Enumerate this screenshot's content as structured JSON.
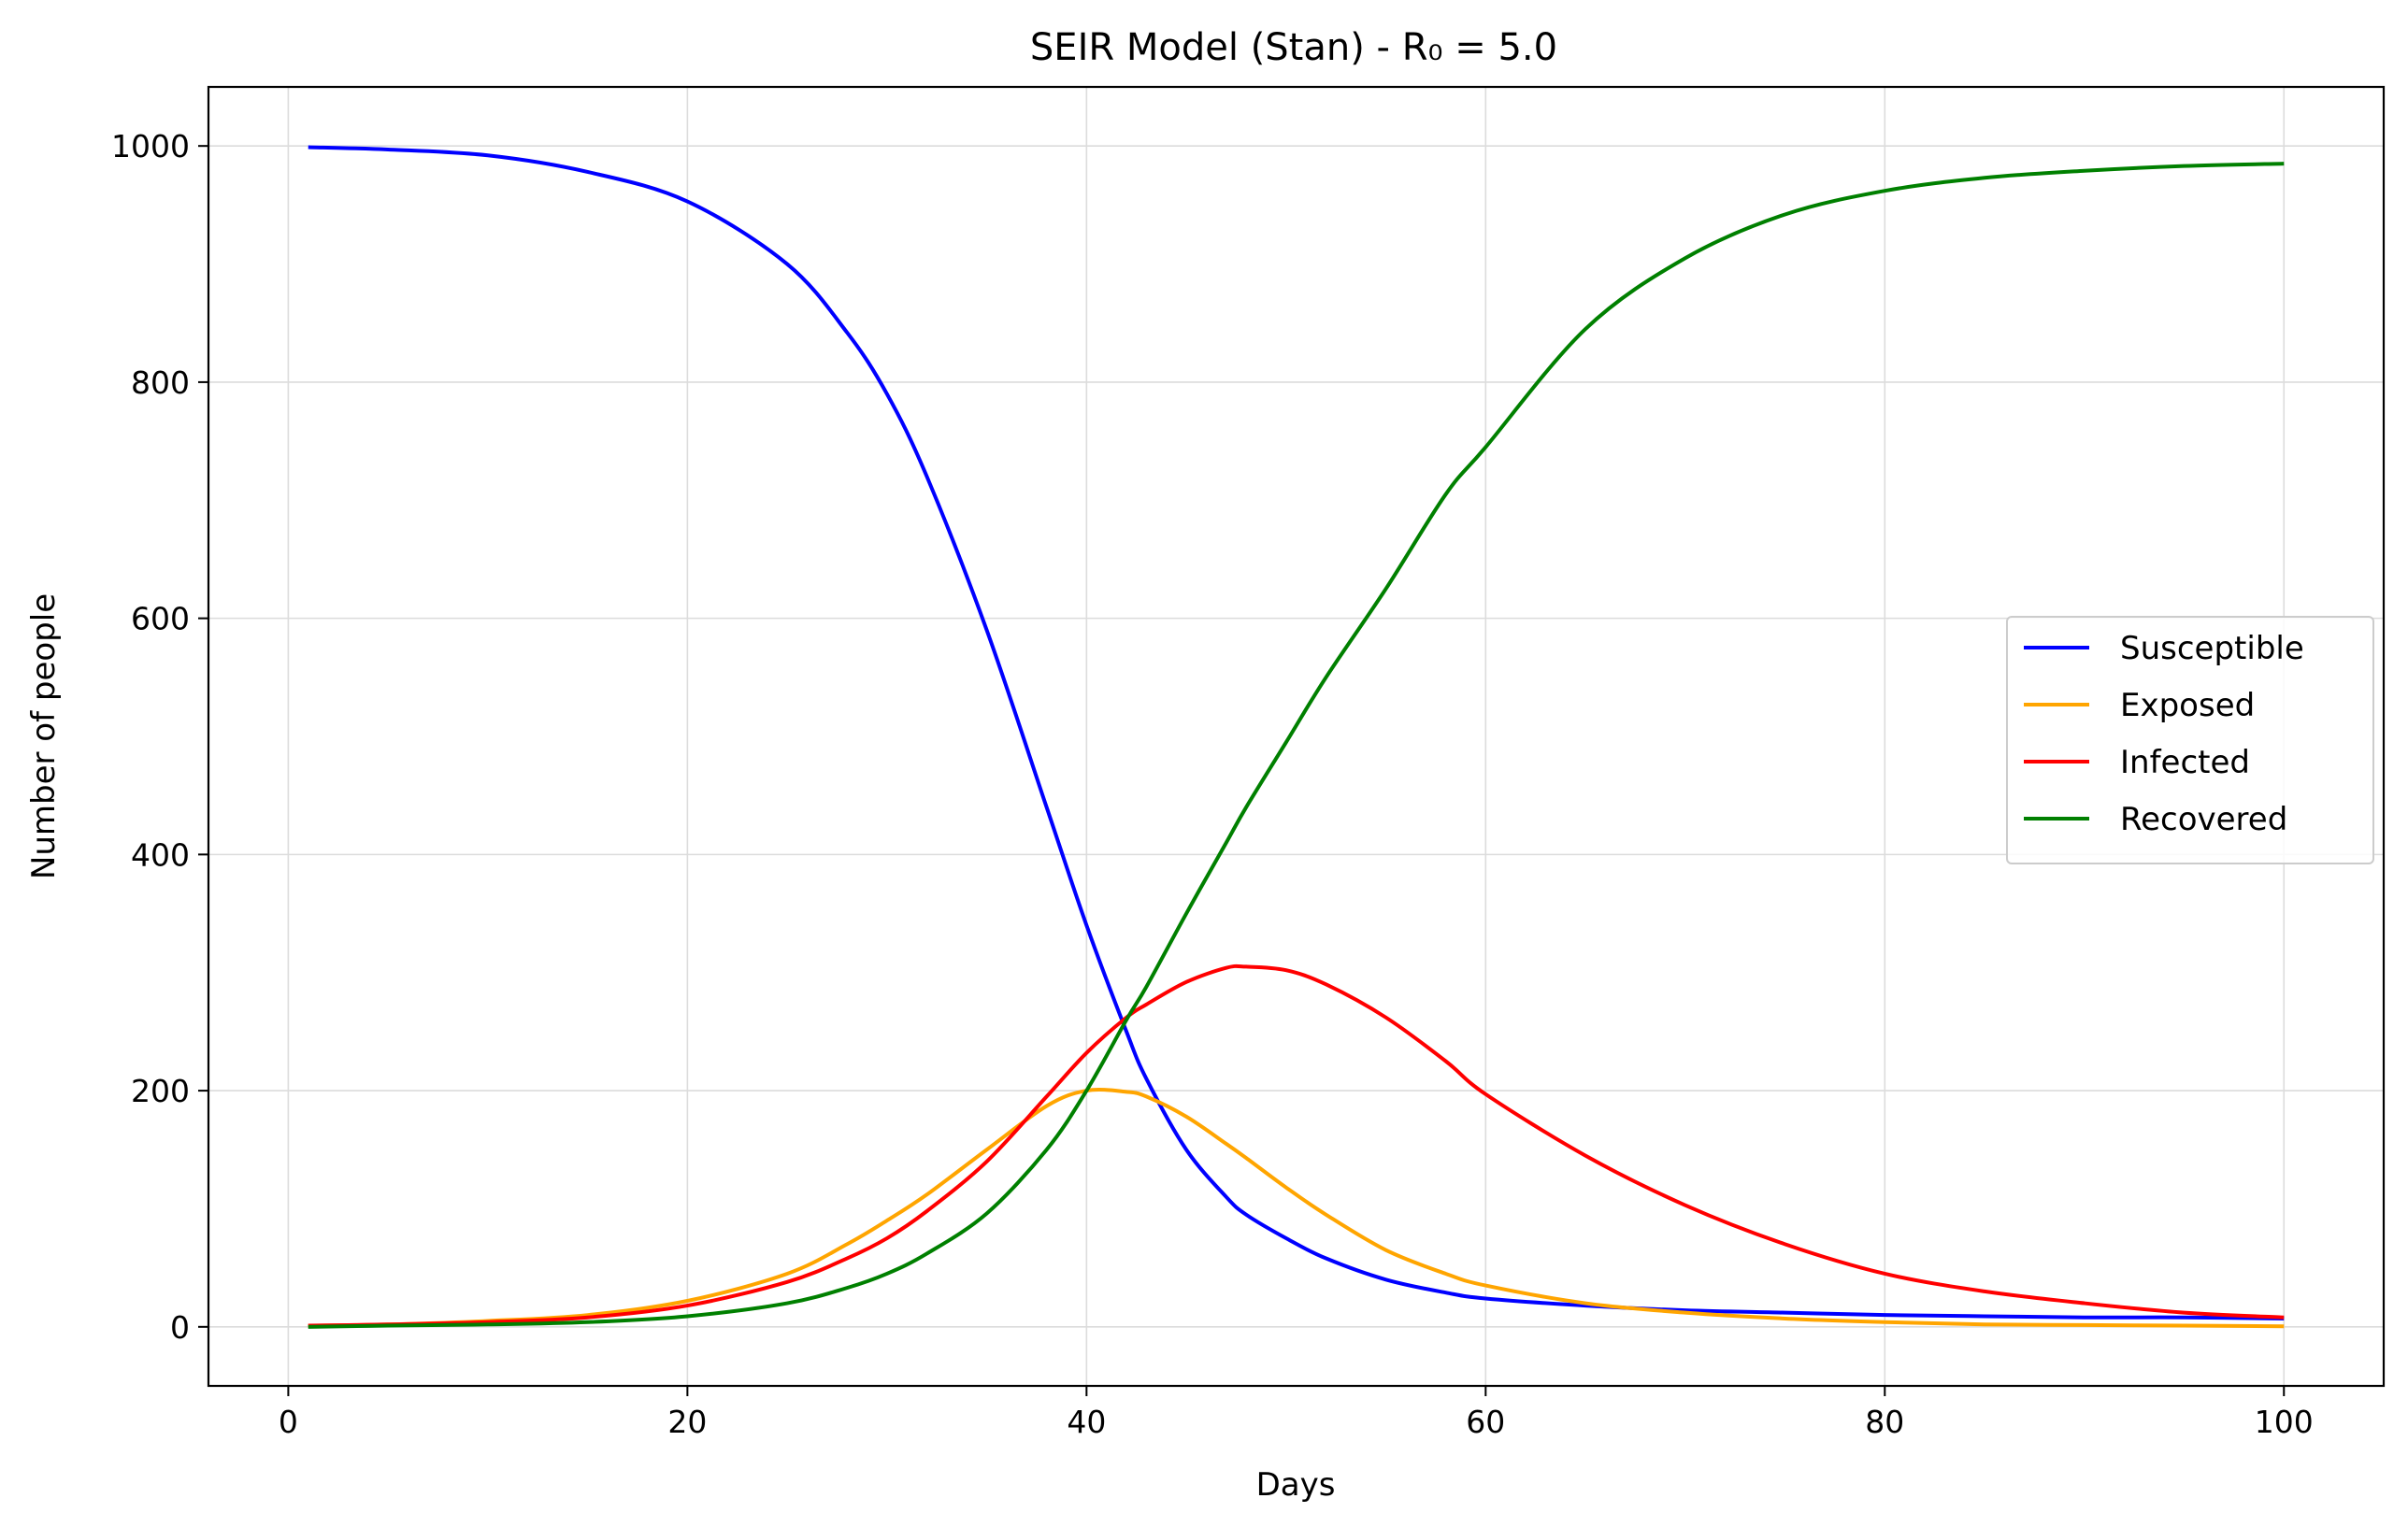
{
  "chart_data": {
    "type": "line",
    "title": "SEIR Model (Stan) - R₀ = 5.0",
    "xlabel": "Days",
    "ylabel": "Number of people",
    "xlim": [
      -4,
      105
    ],
    "ylim": [
      -50,
      1050
    ],
    "xticks": [
      0,
      20,
      40,
      60,
      80,
      100
    ],
    "yticks": [
      0,
      200,
      400,
      600,
      800,
      1000
    ],
    "grid": true,
    "legend_position": "center-right",
    "x": [
      1,
      5,
      10,
      15,
      20,
      25,
      28,
      30,
      32,
      35,
      38,
      40,
      42,
      43,
      45,
      47,
      48,
      50,
      52,
      55,
      58,
      60,
      65,
      70,
      75,
      80,
      85,
      90,
      95,
      100
    ],
    "series": [
      {
        "name": "Susceptible",
        "color": "#0000ff",
        "values": [
          999,
          997,
          992,
          978,
          953,
          900,
          842,
          790,
          720,
          590,
          440,
          340,
          250,
          210,
          150,
          110,
          95,
          75,
          58,
          40,
          29,
          24,
          18,
          14,
          12,
          10,
          9,
          8,
          8,
          7
        ]
      },
      {
        "name": "Exposed",
        "color": "#ffa500",
        "values": [
          1,
          2,
          5,
          10,
          22,
          45,
          70,
          90,
          112,
          150,
          187,
          200,
          199,
          195,
          178,
          155,
          143,
          118,
          95,
          65,
          45,
          35,
          20,
          12,
          7,
          4,
          2,
          1.5,
          1,
          0.5
        ]
      },
      {
        "name": "Infected",
        "color": "#ff0000",
        "values": [
          1,
          2,
          4,
          8,
          18,
          38,
          58,
          75,
          98,
          140,
          195,
          232,
          262,
          273,
          292,
          304,
          305,
          302,
          290,
          262,
          225,
          197,
          145,
          103,
          70,
          45,
          30,
          20,
          12,
          8
        ]
      },
      {
        "name": "Recovered",
        "color": "#008000",
        "values": [
          0,
          1,
          2,
          4,
          9,
          20,
          33,
          45,
          62,
          96,
          150,
          200,
          260,
          288,
          350,
          410,
          440,
          495,
          550,
          625,
          705,
          745,
          845,
          905,
          942,
          962,
          973,
          979,
          983,
          985
        ]
      }
    ]
  }
}
